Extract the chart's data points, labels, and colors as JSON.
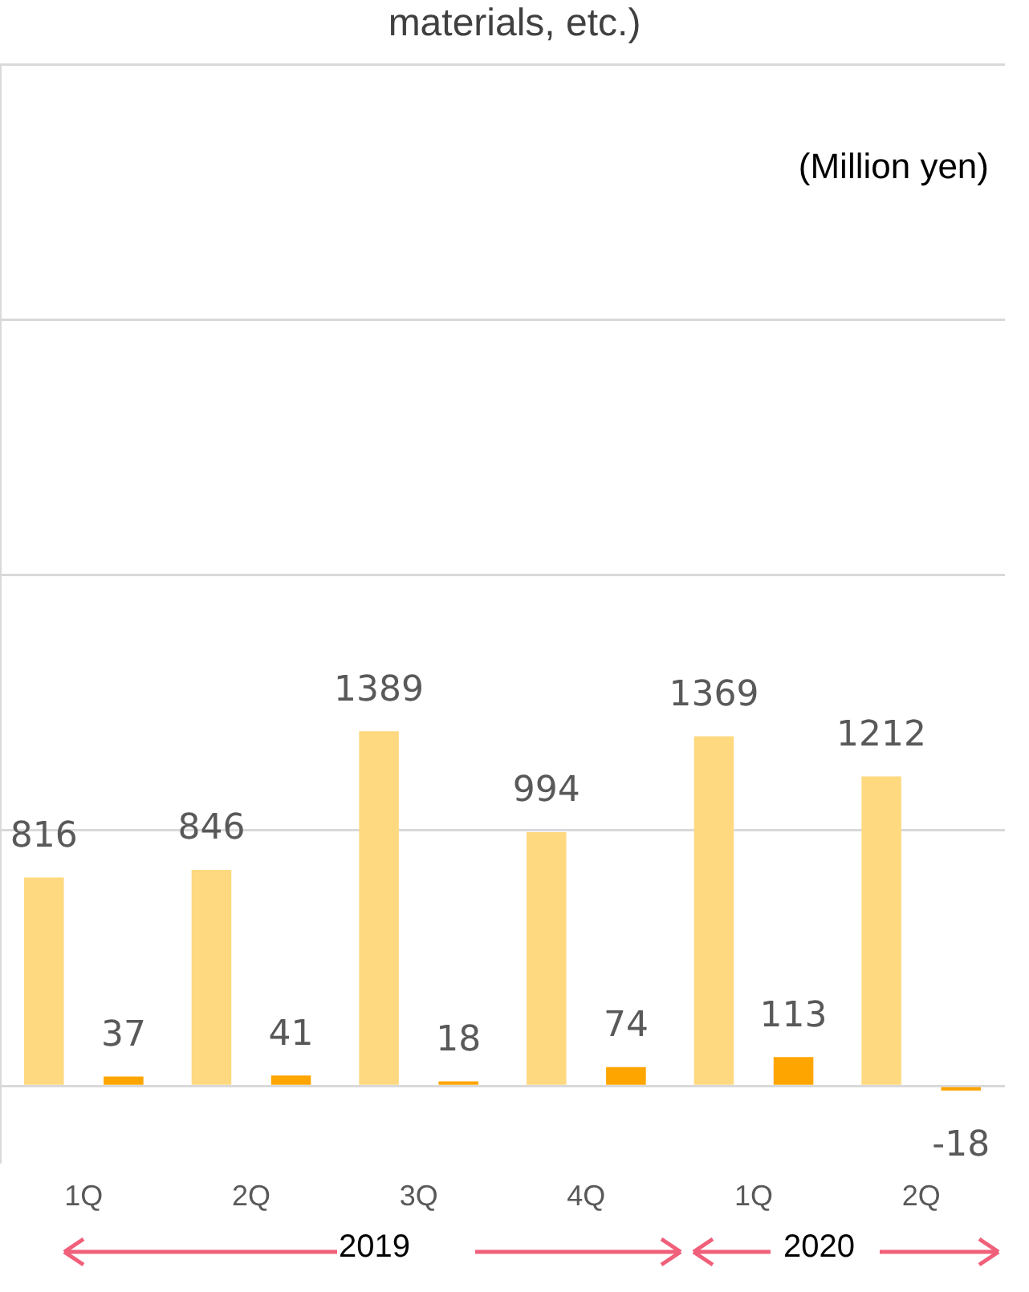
{
  "chart_data": {
    "type": "bar",
    "title": "materials, etc.)",
    "categories": [
      "1Q",
      "2Q",
      "3Q",
      "4Q",
      "1Q",
      "2Q"
    ],
    "series": [
      {
        "color": "#ffd980",
        "values": [
          816,
          846,
          1389,
          994,
          1369,
          1212
        ]
      },
      {
        "color": "#ffa500",
        "values": [
          37,
          41,
          18,
          74,
          113,
          -18
        ]
      }
    ],
    "ylim": [
      -300,
      4000
    ],
    "yticks": [
      {
        "value": 0,
        "label": null
      },
      {
        "value": 1000,
        "label": null
      },
      {
        "value": 2000,
        "label": null
      },
      {
        "value": 3000,
        "label": null
      },
      {
        "value": 4000,
        "label": null
      }
    ],
    "grid": "y",
    "data_labels": true,
    "annotations": [
      "(Million yen)",
      "2019",
      "2020"
    ]
  }
}
